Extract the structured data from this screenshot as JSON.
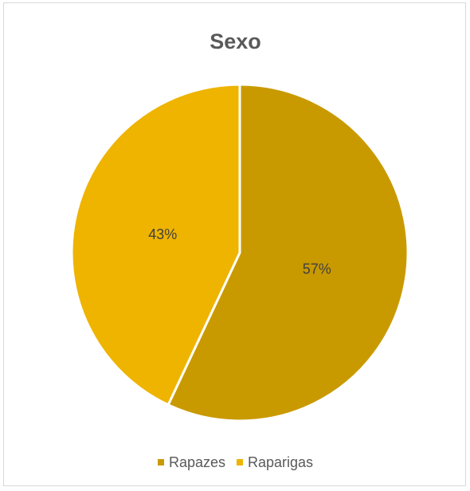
{
  "chart_data": {
    "type": "pie",
    "title": "Sexo",
    "categories": [
      "Rapazes",
      "Raparigas"
    ],
    "values": [
      57,
      43
    ],
    "labels": [
      "57%",
      "43%"
    ],
    "colors": [
      "#c99a00",
      "#eeb400"
    ],
    "legend_position": "bottom"
  }
}
